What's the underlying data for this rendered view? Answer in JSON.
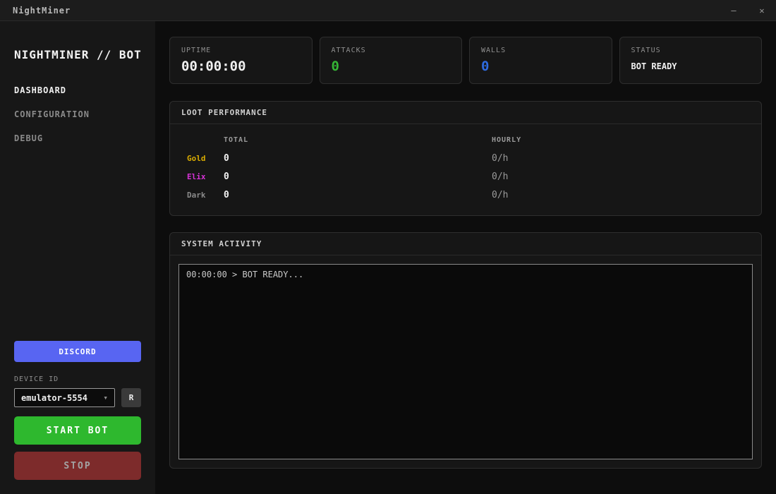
{
  "window": {
    "title": "NightMiner"
  },
  "icons": {
    "minimize": "–",
    "close": "✕",
    "chevron_down": "▾"
  },
  "sidebar": {
    "brand": "NIGHTMINER // BOT",
    "nav": [
      {
        "label": "DASHBOARD",
        "active": true
      },
      {
        "label": "CONFIGURATION",
        "active": false
      },
      {
        "label": "DEBUG",
        "active": false
      }
    ],
    "discord_label": "DISCORD",
    "device_id_label": "DEVICE ID",
    "device_id_value": "emulator-5554",
    "refresh_label": "R",
    "start_label": "START BOT",
    "stop_label": "STOP"
  },
  "stats": [
    {
      "label": "UPTIME",
      "value": "00:00:00",
      "color": "#f0f0f0"
    },
    {
      "label": "ATTACKS",
      "value": "0",
      "color": "#35b535"
    },
    {
      "label": "WALLS",
      "value": "0",
      "color": "#2e6be0"
    },
    {
      "label": "STATUS",
      "value": "BOT READY",
      "color": "#f0f0f0"
    }
  ],
  "loot": {
    "title": "LOOT PERFORMANCE",
    "columns": [
      "TOTAL",
      "HOURLY"
    ],
    "rows": [
      {
        "label": "Gold",
        "color": "#d9ab00",
        "total": "0",
        "hourly": "0/h"
      },
      {
        "label": "Elix",
        "color": "#d633d6",
        "total": "0",
        "hourly": "0/h"
      },
      {
        "label": "Dark",
        "color": "#8a8a8a",
        "total": "0",
        "hourly": "0/h"
      }
    ]
  },
  "activity": {
    "title": "SYSTEM ACTIVITY",
    "log": "00:00:00 > BOT READY..."
  },
  "colors": {
    "discord": "#5865f2",
    "start": "#2eb82e",
    "stop": "#7d2b2b"
  }
}
